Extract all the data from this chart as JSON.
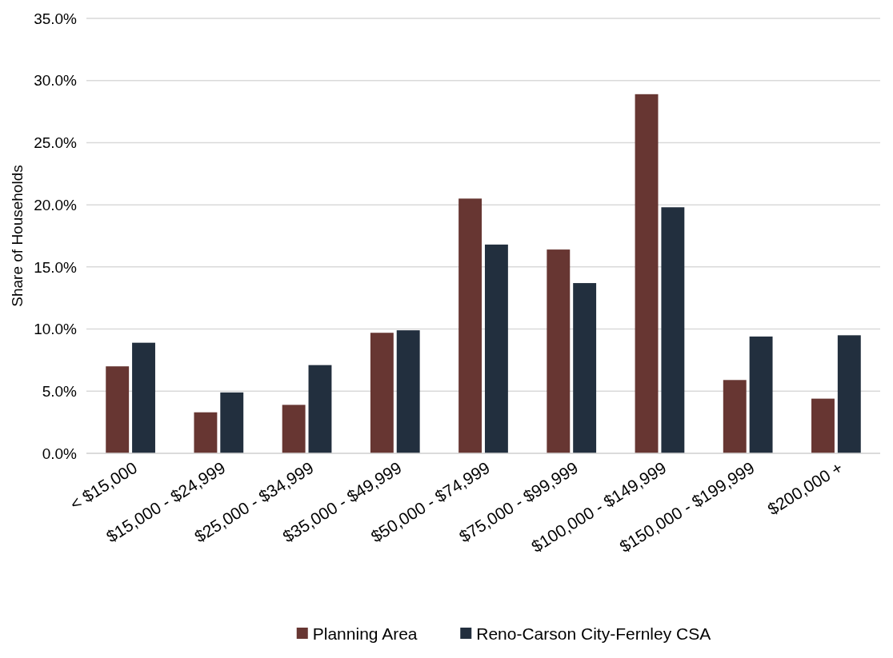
{
  "chart_data": {
    "type": "bar",
    "ylabel": "Share of Households",
    "categories": [
      "< $15,000",
      "$15,000 - $24,999",
      "$25,000 - $34,999",
      "$35,000 - $49,999",
      "$50,000 - $74,999",
      "$75,000 - $99,999",
      "$100,000 - $149,999",
      "$150,000 - $199,999",
      "$200,000 +"
    ],
    "series": [
      {
        "name": "Planning Area",
        "color": "#673632",
        "values": [
          7.0,
          3.3,
          3.9,
          9.7,
          20.5,
          16.4,
          28.9,
          5.9,
          4.4
        ]
      },
      {
        "name": "Reno-Carson City-Fernley CSA",
        "color": "#222f3e",
        "values": [
          8.9,
          4.9,
          7.1,
          9.9,
          16.8,
          13.7,
          19.8,
          9.4,
          9.5
        ]
      }
    ],
    "ylim": [
      0,
      35
    ],
    "yticks": [
      {
        "value": 0,
        "label": "0.0%"
      },
      {
        "value": 5,
        "label": "5.0%"
      },
      {
        "value": 10,
        "label": "10.0%"
      },
      {
        "value": 15,
        "label": "15.0%"
      },
      {
        "value": 20,
        "label": "20.0%"
      },
      {
        "value": 25,
        "label": "25.0%"
      },
      {
        "value": 30,
        "label": "30.0%"
      },
      {
        "value": 35,
        "label": "35.0%"
      }
    ],
    "grid": "y",
    "legend": "bottom"
  }
}
